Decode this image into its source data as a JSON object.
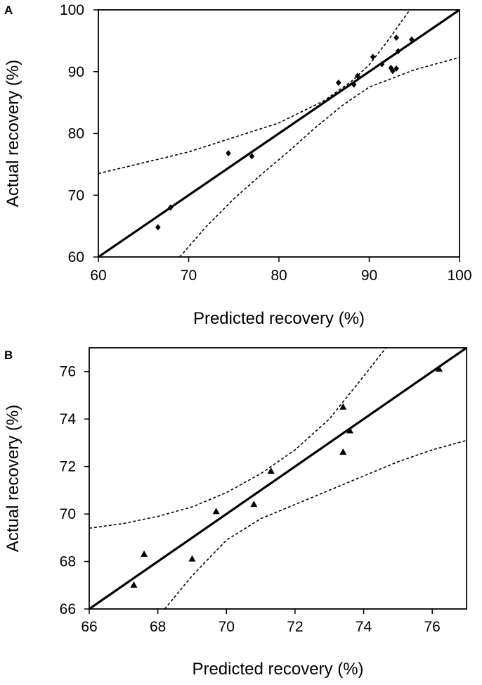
{
  "chart_data": [
    {
      "panel": "A",
      "type": "scatter",
      "xlabel": "Predicted recovery (%)",
      "ylabel": "Actual recovery (%)",
      "xlim": [
        60,
        100
      ],
      "ylim": [
        60,
        100
      ],
      "xticks": [
        "60",
        "70",
        "80",
        "90",
        "100"
      ],
      "yticks": [
        "60",
        "70",
        "80",
        "90",
        "100"
      ],
      "marker": "diamond",
      "points": [
        {
          "x": 66.6,
          "y": 64.8
        },
        {
          "x": 68.0,
          "y": 68.0
        },
        {
          "x": 74.4,
          "y": 76.8
        },
        {
          "x": 77.0,
          "y": 76.3
        },
        {
          "x": 86.6,
          "y": 88.2
        },
        {
          "x": 88.3,
          "y": 87.9
        },
        {
          "x": 88.7,
          "y": 89.3
        },
        {
          "x": 90.4,
          "y": 92.4
        },
        {
          "x": 91.4,
          "y": 91.2
        },
        {
          "x": 92.4,
          "y": 90.6
        },
        {
          "x": 92.6,
          "y": 90.1
        },
        {
          "x": 93.0,
          "y": 90.5
        },
        {
          "x": 93.0,
          "y": 95.5
        },
        {
          "x": 94.7,
          "y": 95.2
        },
        {
          "x": 93.2,
          "y": 93.3
        }
      ],
      "fit_line": {
        "x": [
          60,
          100
        ],
        "y": [
          60,
          100
        ]
      },
      "ci_upper": {
        "x": [
          60,
          70,
          80,
          85,
          88,
          90,
          92,
          94.5
        ],
        "y": [
          73.5,
          77.0,
          81.7,
          85.3,
          88.4,
          91.1,
          94.9,
          100
        ]
      },
      "ci_lower": {
        "x": [
          69,
          72,
          75,
          78,
          81,
          84,
          87,
          90,
          95,
          100
        ],
        "y": [
          60,
          65.0,
          69.4,
          73.3,
          77.0,
          80.9,
          84.5,
          87.5,
          90.3,
          92.3
        ]
      }
    },
    {
      "panel": "B",
      "type": "scatter",
      "xlabel": "Predicted recovery (%)",
      "ylabel": "Actual recovery (%)",
      "xlim": [
        66,
        77
      ],
      "ylim": [
        66,
        77
      ],
      "xticks": [
        "66",
        "68",
        "70",
        "72",
        "74",
        "76"
      ],
      "yticks": [
        "66",
        "68",
        "70",
        "72",
        "74",
        "76"
      ],
      "marker": "triangle",
      "points": [
        {
          "x": 67.3,
          "y": 67.0
        },
        {
          "x": 67.6,
          "y": 68.3
        },
        {
          "x": 69.0,
          "y": 68.1
        },
        {
          "x": 69.7,
          "y": 70.1
        },
        {
          "x": 70.8,
          "y": 70.4
        },
        {
          "x": 71.3,
          "y": 71.8
        },
        {
          "x": 73.4,
          "y": 74.5
        },
        {
          "x": 73.4,
          "y": 72.6
        },
        {
          "x": 73.6,
          "y": 73.5
        },
        {
          "x": 76.2,
          "y": 76.1
        }
      ],
      "fit_line": {
        "x": [
          66,
          77
        ],
        "y": [
          66,
          77
        ]
      },
      "ci_upper": {
        "x": [
          66,
          67,
          68,
          69,
          70,
          71,
          72,
          73,
          74,
          74.65
        ],
        "y": [
          69.4,
          69.6,
          69.9,
          70.3,
          70.9,
          71.7,
          72.7,
          74.0,
          75.8,
          77.0
        ]
      },
      "ci_lower": {
        "x": [
          68.2,
          69,
          70,
          71,
          72,
          73,
          74,
          75,
          76,
          77
        ],
        "y": [
          66.0,
          67.4,
          68.9,
          69.8,
          70.4,
          71.0,
          71.6,
          72.2,
          72.7,
          73.1
        ]
      }
    }
  ],
  "panels": [
    {
      "letter": "A"
    },
    {
      "letter": "B"
    }
  ]
}
